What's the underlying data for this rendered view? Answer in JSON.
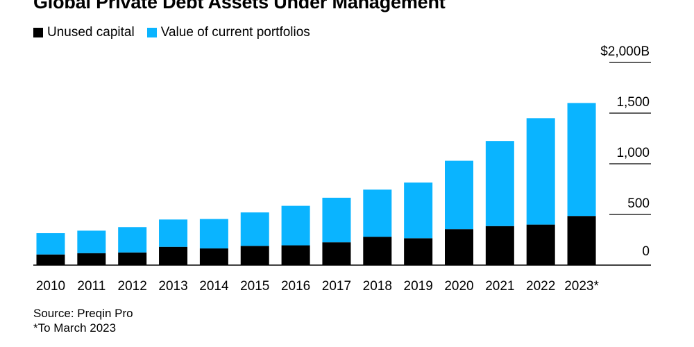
{
  "chart_data": {
    "type": "bar",
    "stacked": true,
    "title": "Global Private Debt Assets Under Management",
    "categories": [
      "2010",
      "2011",
      "2012",
      "2013",
      "2014",
      "2015",
      "2016",
      "2017",
      "2018",
      "2019",
      "2020",
      "2021",
      "2022",
      "2023*"
    ],
    "series": [
      {
        "name": "Unused capital",
        "color": "#000000",
        "values": [
          105,
          118,
          125,
          180,
          165,
          190,
          195,
          225,
          280,
          265,
          355,
          385,
          400,
          485
        ]
      },
      {
        "name": "Value of current portfolios",
        "color": "#0AB4FF",
        "values": [
          210,
          222,
          250,
          270,
          290,
          330,
          390,
          440,
          465,
          550,
          675,
          840,
          1050,
          1115
        ]
      }
    ],
    "y_ticks": [
      {
        "value": 0,
        "label": "0"
      },
      {
        "value": 500,
        "label": "500"
      },
      {
        "value": 1000,
        "label": "1,000"
      },
      {
        "value": 1500,
        "label": "1,500"
      },
      {
        "value": 2000,
        "label": "$2,000B"
      }
    ],
    "ylim": [
      0,
      2000
    ],
    "grid": true,
    "legend_position": "top-left",
    "xlabel": "",
    "ylabel": ""
  },
  "footer": {
    "source": "Source: Preqin Pro",
    "note": "*To March 2023"
  }
}
